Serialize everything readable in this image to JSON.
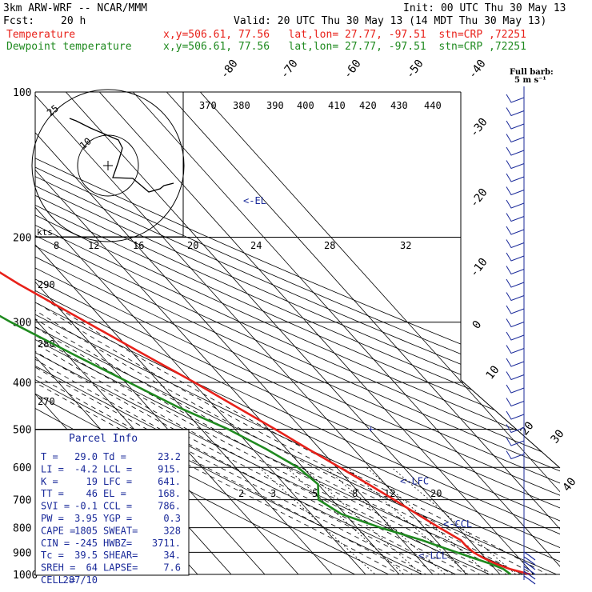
{
  "header": {
    "model": "3km ARW-WRF -- NCAR/MMM",
    "init": "Init: 00 UTC Thu 30 May 13",
    "fcst_label": "Fcst:",
    "fcst_value": "20 h",
    "valid": "Valid: 20 UTC Thu 30 May 13 (14 MDT Thu 30 May 13)",
    "temp_label": "Temperature",
    "dew_label": "Dewpoint temperature",
    "loc_line": "x,y=506.61, 77.56   lat,lon= 27.77, -97.51  stn=CRP ,72251"
  },
  "colors": {
    "temperature": "#e8211a",
    "dewpoint": "#1f8a1f",
    "text_blue": "#1a2a9a",
    "grid": "#000000"
  },
  "barb_label": {
    "title": "Full barb:",
    "value": "5 m s⁻¹"
  },
  "hodograph": {
    "ring_labels": [
      "25",
      "10"
    ],
    "kts_label": "kts"
  },
  "chart_data": {
    "type": "line",
    "title": "",
    "pressure_levels": [
      "100",
      "200",
      "300",
      "400",
      "500",
      "600",
      "700",
      "800",
      "900",
      "1000"
    ],
    "isotherm_labels": [
      "-80",
      "-70",
      "-60",
      "-50",
      "-40",
      "-30",
      "-20",
      "-10",
      "0",
      "10",
      "20",
      "30",
      "40"
    ],
    "theta_labels": [
      "370",
      "380",
      "390",
      "400",
      "410",
      "420",
      "430",
      "440"
    ],
    "theta_left_labels": [
      "290",
      "280",
      "270"
    ],
    "mixing_ratio_labels": [
      "8",
      "12",
      "16",
      "20",
      "24",
      "28",
      "32"
    ],
    "mixing_ratio_low_labels": [
      "2",
      "3",
      "5",
      "8",
      "12",
      "20"
    ],
    "series": [
      {
        "name": "Temperature",
        "p": [
          1000,
          975,
          950,
          925,
          900,
          875,
          850,
          800,
          750,
          700,
          650,
          600,
          550,
          500,
          450,
          400,
          350,
          300,
          250,
          200,
          175,
          150,
          125,
          100
        ],
        "t": [
          29.0,
          24.5,
          21.5,
          19.5,
          18.0,
          17.5,
          17.5,
          14.5,
          11.5,
          8.5,
          5.0,
          1.0,
          -3.5,
          -8.0,
          -13.5,
          -19.5,
          -27.0,
          -35.5,
          -45.5,
          -55.5,
          -61.0,
          -65.5,
          -67.0,
          -69.5
        ]
      },
      {
        "name": "Dewpoint temperature",
        "p": [
          1000,
          975,
          950,
          925,
          900,
          875,
          850,
          800,
          750,
          700,
          650,
          600,
          550,
          500,
          450,
          400,
          350,
          300,
          250,
          200,
          175,
          150,
          125,
          100
        ],
        "t": [
          23.2,
          22.5,
          20.0,
          16.5,
          13.0,
          9.5,
          6.0,
          -3.0,
          -11.0,
          -14.0,
          -10.0,
          -11.5,
          -16.0,
          -22.0,
          -31.0,
          -39.0,
          -48.0,
          -58.0,
          -68.0,
          -77.0,
          -80.0,
          -80.5,
          -81.0,
          -82.0
        ]
      }
    ],
    "levels_marked": [
      {
        "label": "<-EL",
        "p": 168
      },
      {
        "label": "<-LFC",
        "p": 641
      },
      {
        "label": "<-CCL",
        "p": 786
      },
      {
        "label": "<-LCL",
        "p": 915
      }
    ],
    "wind_barbs_count": 28
  },
  "parcel_info": {
    "title": "Parcel Info",
    "rows": [
      [
        "T  =",
        "29.0",
        "Td =",
        "23.2"
      ],
      [
        "LI =",
        "-4.2",
        "LCL =",
        "915."
      ],
      [
        "K  =",
        "19",
        "LFC =",
        "641."
      ],
      [
        "TT =",
        "46",
        "EL  =",
        "168."
      ],
      [
        "SVI =",
        "-0.1",
        "CCL =",
        "786."
      ],
      [
        "PW =",
        "3.95",
        "YGP =",
        "0.3"
      ],
      [
        "CAPE =",
        "1805",
        "SWEAT=",
        "328"
      ],
      [
        "CIN =",
        "-245",
        "HWBZ=",
        "3711."
      ],
      [
        "Tc =",
        "39.5",
        "SHEAR=",
        "34."
      ],
      [
        "SREH =",
        "64",
        "LAPSE=",
        "7.6"
      ],
      [
        "CELL =",
        "287/10",
        "",
        ""
      ]
    ]
  }
}
